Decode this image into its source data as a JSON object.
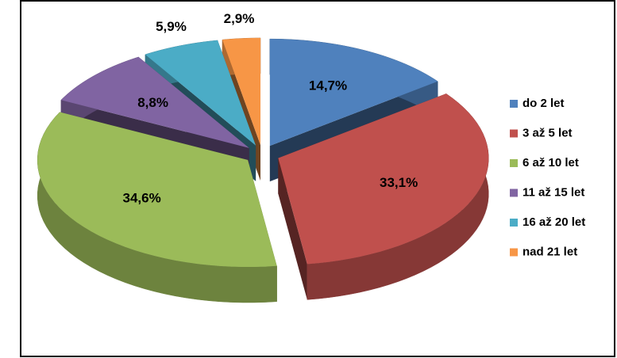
{
  "chart_data": {
    "type": "pie",
    "categories": [
      "do 2 let",
      "3 až 5 let",
      "6 až 10 let",
      "11 až 15 let",
      "16 až 20 let",
      "nad 21 let"
    ],
    "values": [
      14.7,
      33.1,
      34.6,
      8.8,
      5.9,
      2.9
    ],
    "value_labels": [
      "14,7%",
      "33,1%",
      "34,6%",
      "8,8%",
      "5,9%",
      "2,9%"
    ],
    "colors": [
      "#4f81bd",
      "#c0504d",
      "#9bbb59",
      "#8064a2",
      "#4bacc6",
      "#f79646"
    ],
    "legend": "right"
  }
}
